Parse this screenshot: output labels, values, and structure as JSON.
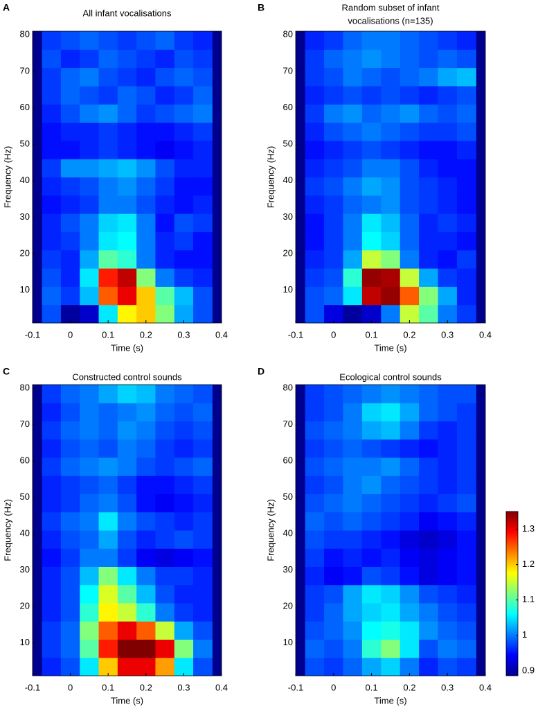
{
  "chart_data": [
    {
      "type": "heatmap",
      "panel": "A",
      "title": "All infant vocalisations",
      "xlabel": "Time (s)",
      "ylabel": "Frequency (Hz)",
      "xlim": [
        -0.1,
        0.4
      ],
      "ylim": [
        1,
        81
      ],
      "xticks": [
        -0.1,
        0,
        0.1,
        0.2,
        0.3,
        0.4
      ],
      "yticks": [
        10,
        20,
        30,
        40,
        50,
        60,
        70,
        80
      ],
      "xbins": [
        -0.075,
        -0.025,
        0.025,
        0.075,
        0.125,
        0.175,
        0.225,
        0.275,
        0.325,
        0.375
      ],
      "ybins": [
        1,
        6,
        11,
        16,
        21,
        26,
        31,
        36,
        41,
        46,
        51,
        56,
        61,
        66,
        71,
        76,
        81
      ],
      "z": [
        [
          0.98,
          0.9,
          0.92,
          1.05,
          1.18,
          1.2,
          1.12,
          1.02,
          0.98
        ],
        [
          0.99,
          0.97,
          1.03,
          1.25,
          1.3,
          1.2,
          1.1,
          1.03,
          0.98
        ],
        [
          0.98,
          0.96,
          1.05,
          1.28,
          1.32,
          1.12,
          1.0,
          0.97,
          0.96
        ],
        [
          0.97,
          0.96,
          1.02,
          1.1,
          1.08,
          1.0,
          0.96,
          0.95,
          0.95
        ],
        [
          0.96,
          0.97,
          1.0,
          1.05,
          1.06,
          1.0,
          0.96,
          0.97,
          0.95
        ],
        [
          0.96,
          0.98,
          1.0,
          1.04,
          1.05,
          1.0,
          0.95,
          0.98,
          0.97
        ],
        [
          0.95,
          0.96,
          0.97,
          1.0,
          1.0,
          0.98,
          0.96,
          0.95,
          0.96
        ],
        [
          0.96,
          0.97,
          0.98,
          1.0,
          1.01,
          0.99,
          0.97,
          0.95,
          0.95
        ],
        [
          0.97,
          1.01,
          1.01,
          1.02,
          1.03,
          1.01,
          0.98,
          0.96,
          0.96
        ],
        [
          0.95,
          0.95,
          0.96,
          0.97,
          0.96,
          0.95,
          0.94,
          0.95,
          0.96
        ],
        [
          0.95,
          0.96,
          0.96,
          0.97,
          0.96,
          0.95,
          0.95,
          0.96,
          0.97
        ],
        [
          0.96,
          0.98,
          1.0,
          1.01,
          0.99,
          0.97,
          0.98,
          0.99,
          1.0
        ],
        [
          0.97,
          0.99,
          0.98,
          0.97,
          0.99,
          0.98,
          0.96,
          0.97,
          0.99
        ],
        [
          0.97,
          0.99,
          1.0,
          0.98,
          0.97,
          0.96,
          0.98,
          0.99,
          0.98
        ],
        [
          0.98,
          0.96,
          0.97,
          0.99,
          0.98,
          0.97,
          0.96,
          0.98,
          0.97
        ],
        [
          0.97,
          0.98,
          0.99,
          0.98,
          0.97,
          0.98,
          0.99,
          0.97,
          0.96
        ]
      ]
    },
    {
      "type": "heatmap",
      "panel": "B",
      "title": [
        "Random subset of infant",
        "vocalisations (n=135)"
      ],
      "xlabel": "Time (s)",
      "ylabel": "Frequency (Hz)",
      "xlim": [
        -0.1,
        0.4
      ],
      "ylim": [
        1,
        81
      ],
      "xticks": [
        -0.1,
        0,
        0.1,
        0.2,
        0.3,
        0.4
      ],
      "yticks": [
        10,
        20,
        30,
        40,
        50,
        60,
        70,
        80
      ],
      "xbins": [
        -0.075,
        -0.025,
        0.025,
        0.075,
        0.125,
        0.175,
        0.225,
        0.275,
        0.325,
        0.375
      ],
      "ybins": [
        1,
        6,
        11,
        16,
        21,
        26,
        31,
        36,
        41,
        46,
        51,
        56,
        61,
        66,
        71,
        76,
        81
      ],
      "z": [
        [
          0.98,
          0.93,
          0.9,
          0.92,
          1.0,
          1.15,
          1.1,
          1.0,
          0.97
        ],
        [
          0.98,
          0.99,
          1.05,
          1.32,
          1.34,
          1.25,
          1.12,
          1.02,
          0.96
        ],
        [
          0.97,
          0.98,
          1.08,
          1.34,
          1.33,
          1.15,
          1.02,
          0.97,
          0.96
        ],
        [
          0.96,
          0.97,
          1.02,
          1.15,
          1.12,
          1.0,
          0.96,
          0.95,
          0.97
        ],
        [
          0.95,
          0.97,
          1.0,
          1.06,
          1.04,
          0.99,
          0.96,
          0.96,
          0.95
        ],
        [
          0.95,
          0.97,
          1.0,
          1.05,
          1.03,
          0.99,
          0.96,
          0.97,
          0.96
        ],
        [
          0.96,
          0.97,
          0.99,
          1.0,
          1.01,
          0.98,
          0.97,
          0.96,
          0.95
        ],
        [
          0.97,
          0.98,
          1.0,
          1.02,
          1.01,
          0.98,
          0.97,
          0.96,
          0.95
        ],
        [
          0.96,
          0.97,
          0.98,
          1.0,
          1.0,
          0.98,
          0.96,
          0.95,
          0.95
        ],
        [
          0.95,
          0.96,
          0.97,
          0.98,
          0.97,
          0.96,
          0.95,
          0.95,
          0.96
        ],
        [
          0.96,
          0.98,
          0.99,
          1.0,
          0.99,
          0.98,
          0.97,
          0.97,
          0.98
        ],
        [
          0.97,
          1.0,
          1.01,
          0.99,
          1.0,
          1.01,
          0.99,
          0.98,
          0.99
        ],
        [
          0.96,
          0.97,
          0.98,
          0.97,
          0.98,
          0.97,
          0.96,
          0.97,
          0.98
        ],
        [
          0.97,
          0.98,
          1.0,
          0.99,
          0.98,
          0.99,
          1.0,
          1.02,
          1.03
        ],
        [
          0.97,
          0.99,
          1.0,
          1.01,
          1.0,
          0.99,
          0.98,
          0.99,
          0.98
        ],
        [
          0.96,
          0.97,
          0.99,
          1.0,
          1.0,
          0.99,
          0.98,
          0.97,
          0.96
        ]
      ]
    },
    {
      "type": "heatmap",
      "panel": "C",
      "title": "Constructed control sounds",
      "xlabel": "Time (s)",
      "ylabel": "Frequency (Hz)",
      "xlim": [
        -0.1,
        0.4
      ],
      "ylim": [
        1,
        81
      ],
      "xticks": [
        -0.1,
        0,
        0.1,
        0.2,
        0.3,
        0.4
      ],
      "yticks": [
        10,
        20,
        30,
        40,
        50,
        60,
        70,
        80
      ],
      "xbins": [
        -0.075,
        -0.025,
        0.025,
        0.075,
        0.125,
        0.175,
        0.225,
        0.275,
        0.325,
        0.375
      ],
      "ybins": [
        1,
        6,
        11,
        16,
        21,
        26,
        31,
        36,
        41,
        46,
        51,
        56,
        61,
        66,
        71,
        76,
        81
      ],
      "z": [
        [
          0.96,
          0.98,
          1.05,
          1.2,
          1.3,
          1.3,
          1.22,
          1.05,
          0.98
        ],
        [
          0.97,
          0.99,
          1.1,
          1.28,
          1.35,
          1.35,
          1.3,
          1.12,
          1.0
        ],
        [
          0.97,
          0.99,
          1.12,
          1.25,
          1.3,
          1.25,
          1.15,
          1.02,
          0.98
        ],
        [
          0.96,
          0.98,
          1.08,
          1.18,
          1.15,
          1.08,
          1.0,
          0.97,
          0.96
        ],
        [
          0.96,
          0.98,
          1.06,
          1.16,
          1.1,
          1.03,
          0.98,
          0.96,
          0.96
        ],
        [
          0.96,
          0.98,
          1.03,
          1.12,
          1.05,
          1.0,
          0.97,
          0.97,
          0.96
        ],
        [
          0.95,
          0.97,
          1.0,
          1.0,
          0.97,
          0.94,
          0.93,
          0.94,
          0.95
        ],
        [
          0.96,
          0.98,
          0.99,
          1.02,
          0.98,
          0.96,
          0.97,
          0.98,
          0.97
        ],
        [
          0.97,
          0.99,
          1.0,
          1.05,
          1.0,
          0.98,
          0.97,
          0.96,
          0.97
        ],
        [
          0.96,
          0.97,
          0.99,
          1.0,
          0.98,
          0.95,
          0.94,
          0.95,
          0.96
        ],
        [
          0.96,
          0.97,
          0.98,
          0.99,
          0.97,
          0.95,
          0.95,
          0.96,
          0.97
        ],
        [
          0.97,
          0.99,
          1.0,
          1.01,
          1.0,
          0.98,
          0.97,
          0.98,
          0.99
        ],
        [
          0.96,
          0.98,
          0.99,
          0.98,
          1.0,
          0.99,
          0.97,
          0.96,
          0.97
        ],
        [
          0.97,
          0.99,
          1.0,
          0.99,
          1.01,
          1.0,
          0.98,
          0.97,
          0.98
        ],
        [
          0.96,
          0.98,
          1.0,
          0.99,
          1.0,
          1.01,
          0.99,
          0.98,
          0.99
        ],
        [
          0.97,
          0.99,
          1.0,
          1.02,
          1.04,
          1.03,
          1.0,
          0.99,
          0.98
        ]
      ]
    },
    {
      "type": "heatmap",
      "panel": "D",
      "title": "Ecological control sounds",
      "xlabel": "Time (s)",
      "ylabel": "Frequency (Hz)",
      "xlim": [
        -0.1,
        0.4
      ],
      "ylim": [
        1,
        81
      ],
      "xticks": [
        -0.1,
        0,
        0.1,
        0.2,
        0.3,
        0.4
      ],
      "yticks": [
        10,
        20,
        30,
        40,
        50,
        60,
        70,
        80
      ],
      "xbins": [
        -0.075,
        -0.025,
        0.025,
        0.075,
        0.125,
        0.175,
        0.225,
        0.275,
        0.325,
        0.375
      ],
      "ybins": [
        1,
        6,
        11,
        16,
        21,
        26,
        31,
        36,
        41,
        46,
        51,
        56,
        61,
        66,
        71,
        76,
        81
      ],
      "z": [
        [
          0.98,
          0.97,
          0.99,
          1.02,
          1.04,
          1.0,
          0.96,
          0.98,
          0.97
        ],
        [
          0.99,
          0.98,
          1.0,
          1.08,
          1.12,
          1.05,
          0.98,
          1.0,
          0.99
        ],
        [
          0.98,
          0.99,
          1.01,
          1.06,
          1.07,
          1.05,
          1.01,
          0.99,
          0.98
        ],
        [
          0.97,
          0.99,
          1.02,
          1.04,
          1.05,
          1.02,
          1.0,
          0.98,
          0.97
        ],
        [
          0.97,
          0.98,
          1.02,
          1.05,
          1.04,
          1.01,
          0.98,
          0.97,
          0.96
        ],
        [
          0.96,
          0.94,
          0.95,
          0.98,
          0.97,
          0.95,
          0.93,
          0.94,
          0.95
        ],
        [
          0.97,
          0.95,
          0.96,
          0.95,
          0.96,
          0.94,
          0.93,
          0.94,
          0.95
        ],
        [
          0.98,
          0.97,
          0.97,
          0.96,
          0.95,
          0.93,
          0.92,
          0.93,
          0.95
        ],
        [
          0.99,
          0.98,
          0.99,
          0.98,
          0.97,
          0.96,
          0.94,
          0.95,
          0.96
        ],
        [
          0.98,
          0.99,
          1.0,
          0.99,
          0.98,
          0.97,
          0.96,
          0.97,
          0.98
        ],
        [
          0.97,
          0.98,
          1.0,
          1.01,
          0.99,
          0.98,
          0.97,
          0.96,
          0.97
        ],
        [
          0.98,
          0.99,
          1.0,
          1.0,
          1.01,
          0.99,
          0.97,
          0.96,
          0.97
        ],
        [
          0.97,
          0.98,
          0.99,
          0.98,
          0.97,
          0.96,
          0.95,
          0.96,
          0.97
        ],
        [
          0.98,
          0.99,
          1.0,
          1.02,
          1.03,
          1.0,
          0.97,
          0.96,
          0.97
        ],
        [
          0.97,
          0.98,
          1.0,
          1.04,
          1.05,
          1.02,
          0.99,
          0.98,
          0.97
        ],
        [
          0.97,
          0.98,
          0.99,
          1.0,
          1.01,
          1.0,
          0.99,
          0.98,
          0.98
        ]
      ]
    }
  ],
  "colorbar": {
    "lim": [
      0.886,
      1.35
    ],
    "ticks": [
      0.9,
      1,
      1.1,
      1.2,
      1.3
    ]
  }
}
